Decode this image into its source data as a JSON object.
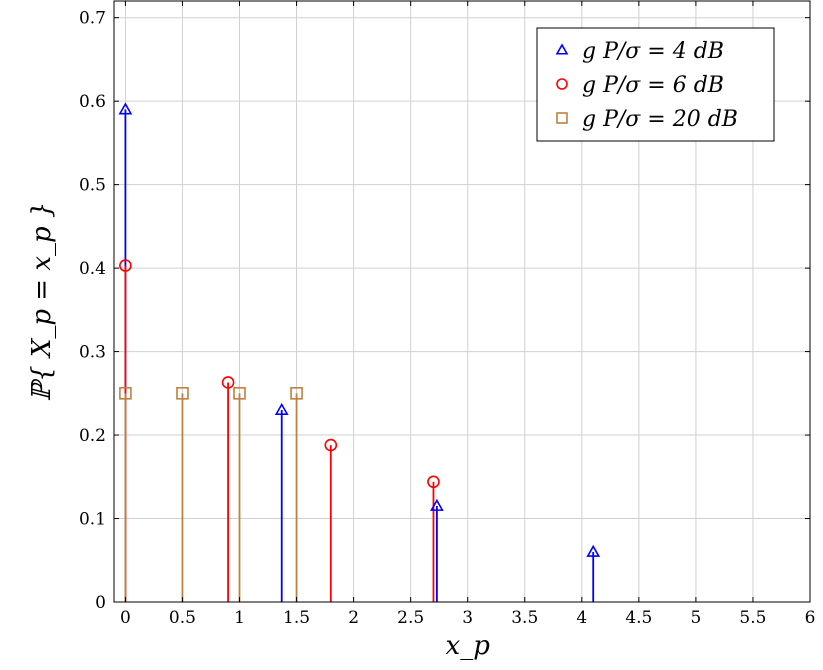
{
  "chart_data": {
    "type": "stem",
    "xlabel": "x_p",
    "ylabel": "ℙ{ X_p = x_p }",
    "xlim": [
      -0.1,
      6
    ],
    "ylim": [
      0,
      0.72
    ],
    "x_ticks": [
      0,
      0.5,
      1,
      1.5,
      2,
      2.5,
      3,
      3.5,
      4,
      4.5,
      5,
      5.5,
      6
    ],
    "x_tick_labels": [
      "0",
      "0.5",
      "1",
      "1.5",
      "2",
      "2.5",
      "3",
      "3.5",
      "4",
      "4.5",
      "5",
      "5.5",
      "6"
    ],
    "y_ticks": [
      0,
      0.1,
      0.2,
      0.3,
      0.4,
      0.5,
      0.6,
      0.7
    ],
    "y_tick_labels": [
      "0",
      "0.1",
      "0.2",
      "0.3",
      "0.4",
      "0.5",
      "0.6",
      "0.7"
    ],
    "grid": true,
    "legend_position": "top-right",
    "series": [
      {
        "name": "g P/σ = 4 dB",
        "color": "#0000ff",
        "marker": "triangle",
        "x": [
          0,
          1.37,
          2.73,
          4.1
        ],
        "y": [
          0.59,
          0.23,
          0.115,
          0.06
        ]
      },
      {
        "name": "g P/σ = 6 dB",
        "color": "#ff0000",
        "marker": "circle",
        "x": [
          0,
          0.9,
          1.8,
          2.7
        ],
        "y": [
          0.403,
          0.263,
          0.188,
          0.144
        ]
      },
      {
        "name": "g P/σ = 20 dB",
        "color": "#c08040",
        "marker": "square",
        "x": [
          0,
          0.5,
          1,
          1.5
        ],
        "y": [
          0.25,
          0.25,
          0.25,
          0.25
        ]
      }
    ]
  }
}
